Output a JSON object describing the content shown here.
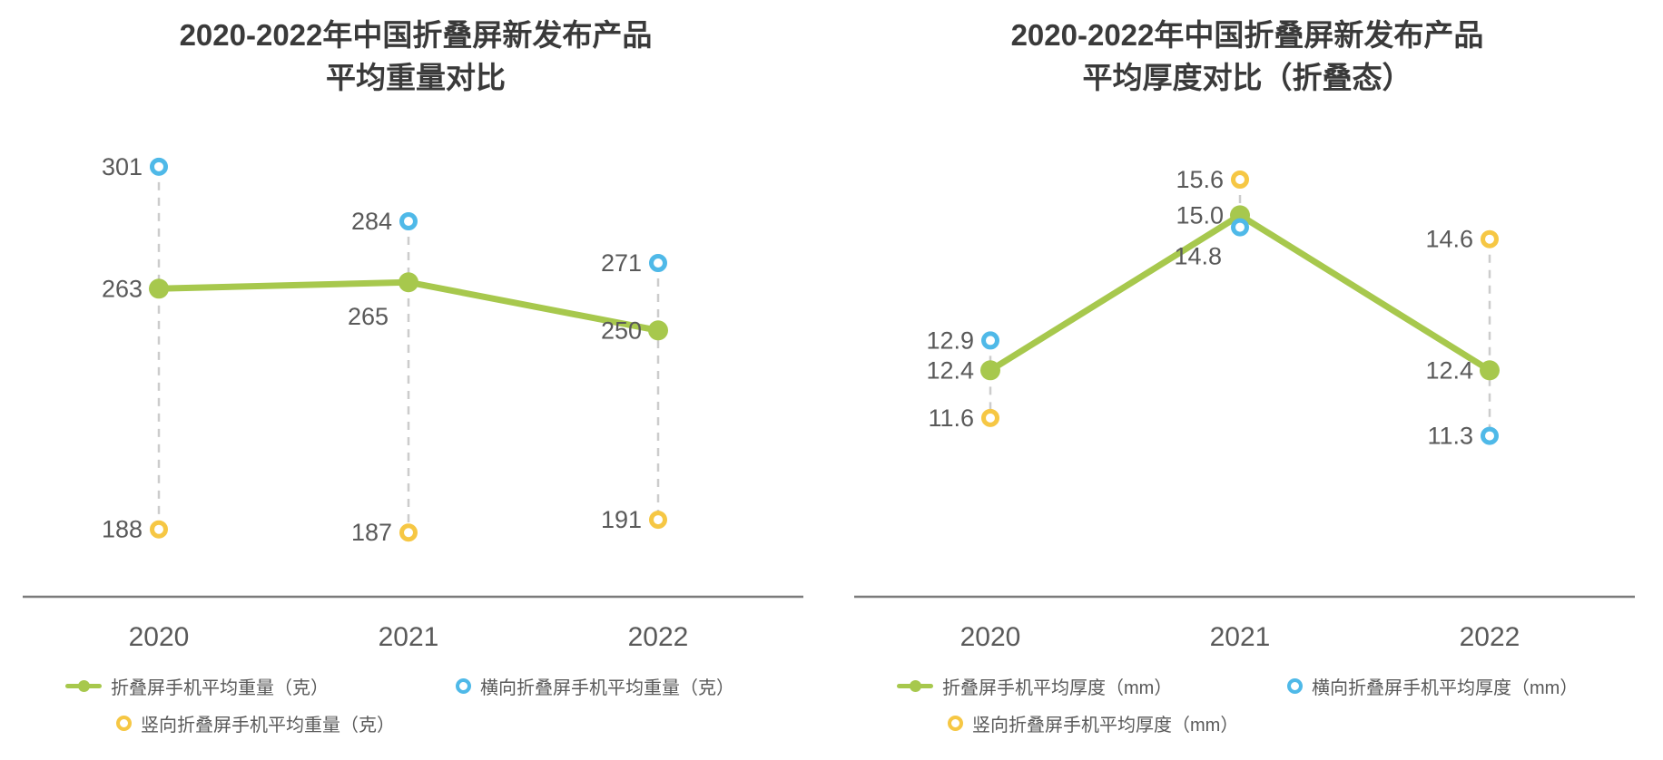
{
  "chart_data": [
    {
      "type": "line",
      "title_lines": [
        "2020-2022年中国折叠屏新发布产品",
        "平均重量对比"
      ],
      "categories": [
        "2020",
        "2021",
        "2022"
      ],
      "ylim": [
        180,
        310
      ],
      "grid": false,
      "legend_position": "bottom",
      "series": [
        {
          "name": "折叠屏手机平均重量（克）",
          "marker": "dot-line",
          "color": "#a7c84d",
          "values": [
            263,
            265,
            250
          ],
          "labels": [
            "263",
            "265",
            "250"
          ],
          "label_offsets": {
            "1": [
              -4,
              38
            ]
          }
        },
        {
          "name": "横向折叠屏手机平均重量（克）",
          "marker": "ring",
          "color": "#4fb9e8",
          "values": [
            301,
            284,
            271
          ],
          "labels": [
            "301",
            "284",
            "271"
          ]
        },
        {
          "name": "竖向折叠屏手机平均重量（克）",
          "marker": "ring",
          "color": "#f6c744",
          "values": [
            188,
            187,
            191
          ],
          "labels": [
            "188",
            "187",
            "191"
          ]
        }
      ]
    },
    {
      "type": "line",
      "title_lines": [
        "2020-2022年中国折叠屏新发布产品",
        "平均厚度对比（折叠态）"
      ],
      "categories": [
        "2020",
        "2021",
        "2022"
      ],
      "ylim": [
        9.3,
        16.3
      ],
      "grid": false,
      "legend_position": "bottom",
      "series": [
        {
          "name": "折叠屏手机平均厚度（mm）",
          "marker": "dot-line",
          "color": "#a7c84d",
          "values": [
            12.4,
            15.0,
            12.4
          ],
          "labels": [
            "12.4",
            "15.0",
            "12.4"
          ]
        },
        {
          "name": "横向折叠屏手机平均厚度（mm）",
          "marker": "ring",
          "color": "#4fb9e8",
          "values": [
            12.9,
            14.8,
            11.3
          ],
          "labels": [
            "12.9",
            "14.8",
            "11.3"
          ],
          "label_offsets": {
            "1": [
              -2,
              32
            ]
          }
        },
        {
          "name": "竖向折叠屏手机平均厚度（mm）",
          "marker": "ring",
          "color": "#f6c744",
          "values": [
            11.6,
            15.6,
            14.6
          ],
          "labels": [
            "11.6",
            "15.6",
            "14.6"
          ]
        }
      ]
    }
  ],
  "style": {
    "value_label_color": "#595959",
    "axis_color": "#7b7b7b",
    "dashed_color": "#cccccc",
    "tick_label_color": "#595959"
  }
}
